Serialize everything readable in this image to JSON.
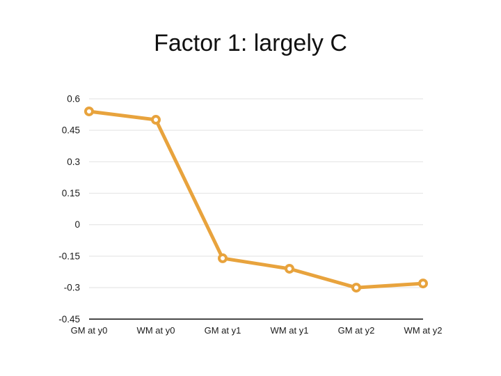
{
  "title": "Factor 1: largely C",
  "chart_data": {
    "type": "line",
    "title": "Factor 1: largely C",
    "categories": [
      "GM at y0",
      "WM at y0",
      "GM at y1",
      "WM at y1",
      "GM at y2",
      "WM at y2"
    ],
    "values": [
      0.54,
      0.5,
      -0.16,
      -0.21,
      -0.3,
      -0.28
    ],
    "xlabel": "",
    "ylabel": "",
    "ylim": [
      -0.45,
      0.6
    ],
    "y_tick_interval": 0.15,
    "y_ticks": [
      "0.6",
      "0.45",
      "0.3",
      "0.15",
      "0",
      "-0.15",
      "-0.3",
      "-0.45"
    ],
    "grid": true,
    "legend": false,
    "marker": "open-circle"
  },
  "colors": {
    "series": "#E8A33D",
    "marker_fill": "#FFFFFF",
    "gridline": "#E4E4E4",
    "axis_line": "#1A1A1A",
    "tick_text": "#1A1A1A",
    "title_text": "#111111",
    "background": "#FFFFFF"
  }
}
